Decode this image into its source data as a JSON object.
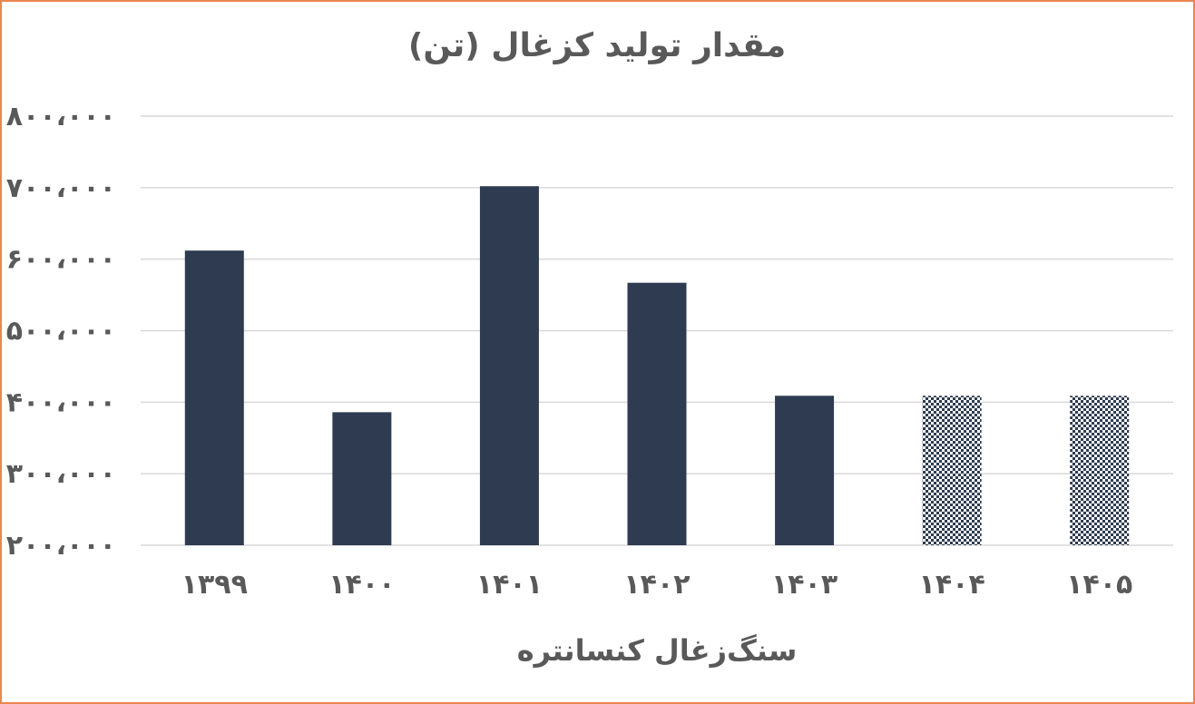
{
  "chart_data": {
    "type": "bar",
    "title": "مقدار تولید کزغال (تن)",
    "xlabel": "سنگ‌زغال کنسانتره",
    "ylabel": "",
    "categories": [
      "۱۳۹۹",
      "۱۴۰۰",
      "۱۴۰۱",
      "۱۴۰۲",
      "۱۴۰۳",
      "۱۴۰۴",
      "۱۴۰۵"
    ],
    "values": [
      612000,
      386000,
      702000,
      567000,
      409000,
      409000,
      409000
    ],
    "projected": [
      false,
      false,
      false,
      false,
      false,
      true,
      true
    ],
    "ylim": [
      200000,
      800000
    ],
    "yticks": [
      200000,
      300000,
      400000,
      500000,
      600000,
      700000,
      800000
    ],
    "ytick_labels": [
      "۲۰۰،۰۰۰",
      "۳۰۰،۰۰۰",
      "۴۰۰،۰۰۰",
      "۵۰۰،۰۰۰",
      "۶۰۰،۰۰۰",
      "۷۰۰،۰۰۰",
      "۸۰۰،۰۰۰"
    ],
    "grid": true,
    "legend": "none",
    "colors": {
      "bar": "#2e3b50",
      "projected_bar": "#2e3b50",
      "grid": "#d9d9d9",
      "text": "#595959",
      "border": "#e8864f"
    }
  }
}
